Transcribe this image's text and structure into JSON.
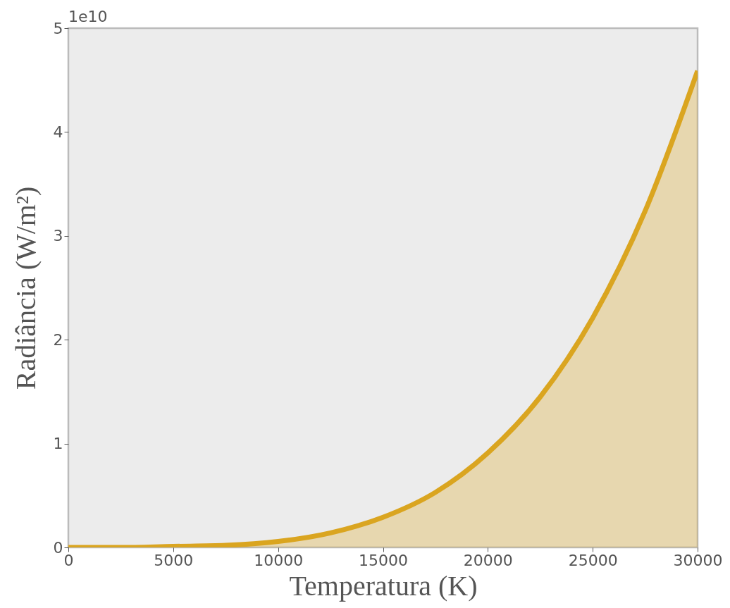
{
  "chart_data": {
    "type": "area",
    "xlabel": "Temperatura (K)",
    "ylabel": "Radiância (W/m²)",
    "annotations": [
      "1e10"
    ],
    "x": [
      0,
      2500,
      5000,
      7500,
      10000,
      12500,
      15000,
      17500,
      20000,
      22500,
      25000,
      27500,
      30000
    ],
    "series": [
      {
        "color": "#daa520",
        "values": [
          0,
          0,
          0.01,
          0.02,
          0.057,
          0.14,
          0.29,
          0.53,
          0.91,
          1.45,
          2.21,
          3.24,
          4.59
        ]
      }
    ],
    "xlim": [
      0,
      30000
    ],
    "ylim": [
      0,
      5
    ],
    "xticks": [
      0,
      5000,
      10000,
      15000,
      20000,
      25000,
      30000
    ],
    "yticks": [
      0,
      1,
      2,
      3,
      4,
      5
    ],
    "grid": false
  }
}
